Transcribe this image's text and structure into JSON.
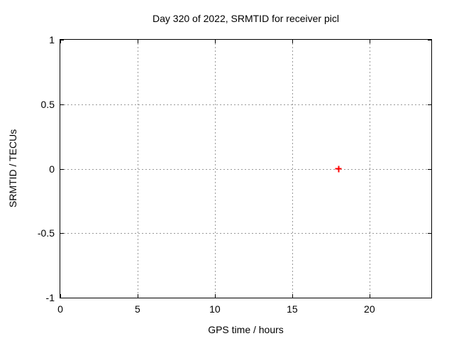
{
  "chart_data": {
    "type": "scatter",
    "title": "Day 320 of 2022, SRMTID for receiver picl",
    "xlabel": "GPS time / hours",
    "ylabel": "SRMTID / TECUs",
    "xlim": [
      0,
      24
    ],
    "ylim": [
      -1,
      1
    ],
    "xticks": [
      0,
      5,
      10,
      15,
      20
    ],
    "yticks": [
      -1,
      -0.5,
      0,
      0.5,
      1
    ],
    "grid": true,
    "grid_style": "dashed",
    "legend": "none",
    "series": [
      {
        "name": "srmtid",
        "marker": "plus",
        "color": "#ff0000",
        "points": [
          {
            "x": 18,
            "y": 0
          }
        ]
      }
    ],
    "colors": {
      "axis": "#000000",
      "grid": "#999999",
      "text": "#000000",
      "background": "#ffffff"
    }
  }
}
